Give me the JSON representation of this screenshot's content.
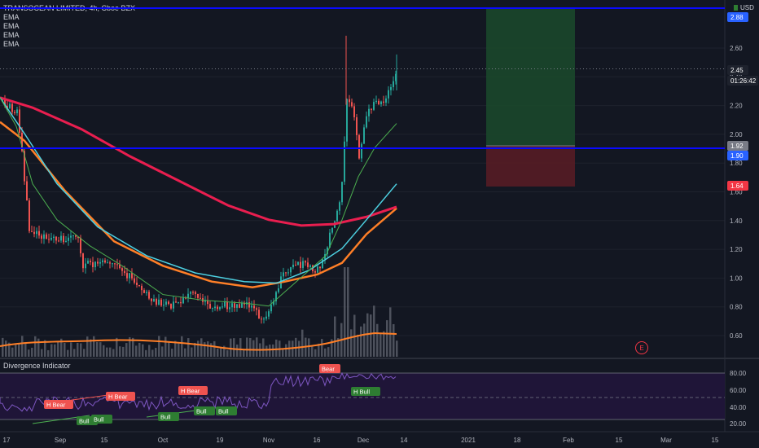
{
  "header": {
    "symbol": "TRANSOCEAN LIMITED, 4h, Cboe BZX",
    "indicators": [
      "EMA",
      "EMA",
      "EMA",
      "EMA"
    ],
    "currency": "USD",
    "currency_tag": "2"
  },
  "oscillator": {
    "title": "Divergence Indicator"
  },
  "price_axis": {
    "ticks": [
      "2.60",
      "2.40",
      "2.20",
      "2.00",
      "1.80",
      "1.60",
      "1.40",
      "1.20",
      "1.00",
      "0.80",
      "0.60"
    ],
    "tags": [
      {
        "label": "2.88",
        "color": "#2962ff",
        "text_color": "#ffffff"
      },
      {
        "label": "2.45",
        "color": "#1e222d",
        "text_color": "#ffffff"
      },
      {
        "label": "01:26:42",
        "color": "#1e222d",
        "text_color": "#ffffff"
      },
      {
        "label": "1.92",
        "color": "#787b86",
        "text_color": "#ffffff"
      },
      {
        "label": "1.90",
        "color": "#2962ff",
        "text_color": "#ffffff"
      },
      {
        "label": "1.64",
        "color": "#f23645",
        "text_color": "#ffffff"
      }
    ]
  },
  "osc_axis": {
    "ticks": [
      "80.00",
      "60.00",
      "40.00",
      "20.00"
    ]
  },
  "time_axis": [
    "17",
    "Sep",
    "15",
    "Oct",
    "19",
    "Nov",
    "16",
    "Dec",
    "14",
    "2021",
    "18",
    "Feb",
    "15",
    "Mar",
    "15"
  ],
  "earnings_marker": "E",
  "divergence_labels": [
    {
      "text": "H Bear",
      "kind": "bear"
    },
    {
      "text": "H Bear",
      "kind": "bear"
    },
    {
      "text": "H Bear",
      "kind": "bear"
    },
    {
      "text": "Bear",
      "kind": "bear"
    },
    {
      "text": "H Bull",
      "kind": "bull"
    },
    {
      "text": "Bull",
      "kind": "bull"
    },
    {
      "text": "Bull",
      "kind": "bull"
    },
    {
      "text": "Bull",
      "kind": "bull"
    },
    {
      "text": "Bull",
      "kind": "bull"
    },
    {
      "text": "Bull",
      "kind": "bull"
    }
  ],
  "colors": {
    "background": "#131722",
    "bull": "#26a69a",
    "bear": "#ef5350",
    "horizontal_line": "#0a0aff",
    "ema_fast": "#4caf50",
    "ema_mid": "#4dd0e1",
    "ema_slow": "#ff7f27",
    "ema_long": "#e91e4f",
    "rsi_line": "#7e57c2"
  }
}
